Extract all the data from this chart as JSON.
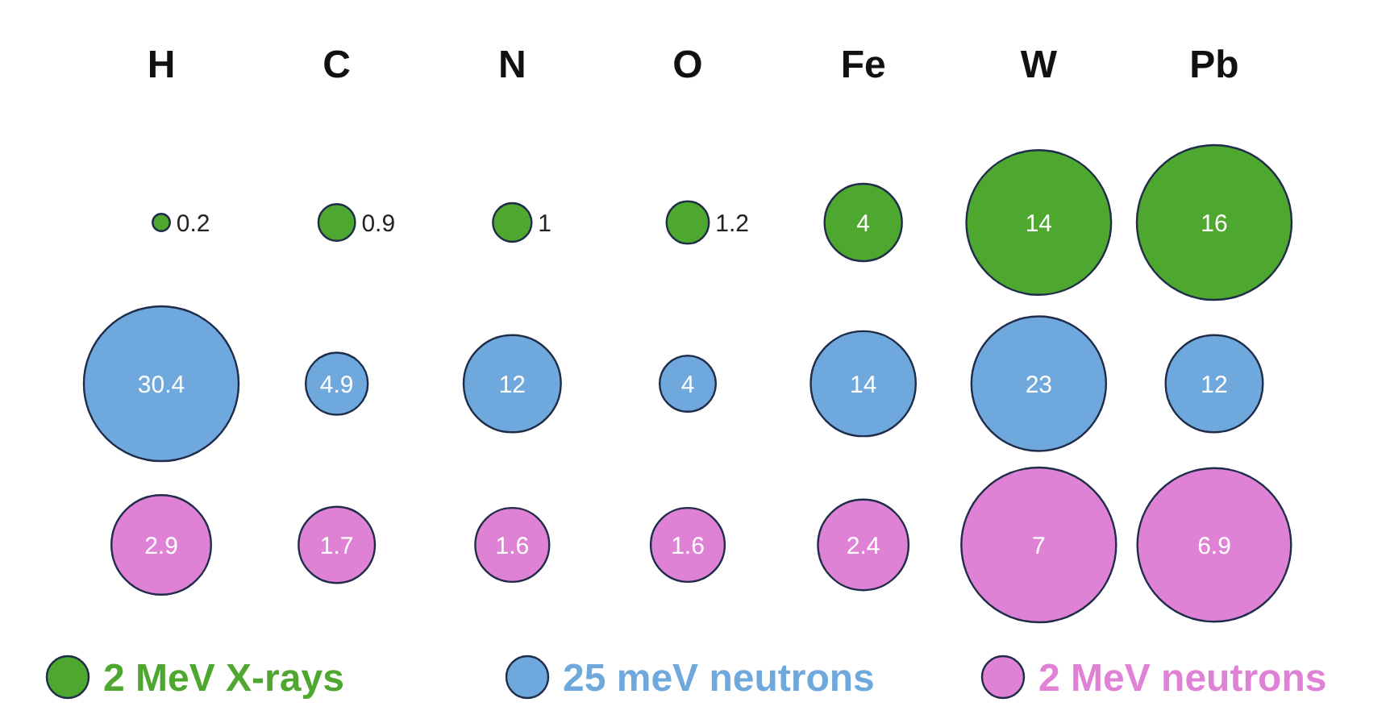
{
  "chart_data": {
    "type": "other",
    "categories": [
      "H",
      "C",
      "N",
      "O",
      "Fe",
      "W",
      "Pb"
    ],
    "data_labels": true,
    "legend": "bottom",
    "series": [
      {
        "name": "2 MeV X-rays",
        "color": "#4ea72e",
        "values": [
          0.2,
          0.9,
          1,
          1.2,
          4,
          14,
          16
        ]
      },
      {
        "name": "25 meV neutrons",
        "color": "#6fa8dc",
        "values": [
          30.4,
          4.9,
          12,
          4,
          14,
          23,
          12
        ]
      },
      {
        "name": "2 MeV neutrons",
        "color": "#df82d6",
        "values": [
          2.9,
          1.7,
          1.6,
          1.6,
          2.4,
          7,
          6.9
        ]
      }
    ]
  }
}
